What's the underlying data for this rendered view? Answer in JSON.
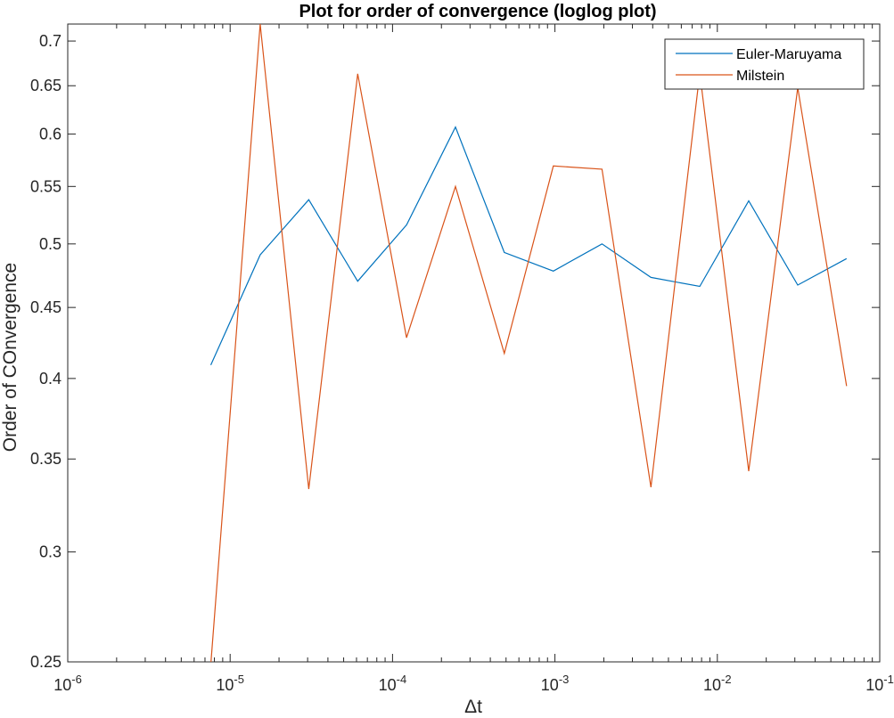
{
  "chart_data": {
    "type": "line",
    "title": "Plot for order of convergence (loglog plot)",
    "xlabel": "Δt",
    "ylabel": "Order of COnvergence",
    "xscale": "log",
    "yscale": "log",
    "xlim": [
      1e-06,
      0.1
    ],
    "ylim": [
      0.25,
      0.72
    ],
    "x_ticks": [
      {
        "value": 1e-06,
        "base": "10",
        "exp": "-6"
      },
      {
        "value": 1e-05,
        "base": "10",
        "exp": "-5"
      },
      {
        "value": 0.0001,
        "base": "10",
        "exp": "-4"
      },
      {
        "value": 0.001,
        "base": "10",
        "exp": "-3"
      },
      {
        "value": 0.01,
        "base": "10",
        "exp": "-2"
      },
      {
        "value": 0.1,
        "base": "10",
        "exp": "-1"
      }
    ],
    "y_ticks": [
      {
        "value": 0.25,
        "label": "0.25"
      },
      {
        "value": 0.3,
        "label": "0.3"
      },
      {
        "value": 0.35,
        "label": "0.35"
      },
      {
        "value": 0.4,
        "label": "0.4"
      },
      {
        "value": 0.45,
        "label": "0.45"
      },
      {
        "value": 0.5,
        "label": "0.5"
      },
      {
        "value": 0.55,
        "label": "0.55"
      },
      {
        "value": 0.6,
        "label": "0.6"
      },
      {
        "value": 0.65,
        "label": "0.65"
      },
      {
        "value": 0.7,
        "label": "0.7"
      }
    ],
    "x": [
      7.6e-06,
      1.53e-05,
      3.05e-05,
      6.1e-05,
      0.000122,
      0.000244,
      0.000488,
      0.000977,
      0.00195,
      0.0039,
      0.0078,
      0.0156,
      0.03125,
      0.0625
    ],
    "series": [
      {
        "name": "Euler-Maruyama",
        "color": "#0072BD",
        "values": [
          0.409,
          0.491,
          0.538,
          0.47,
          0.516,
          0.607,
          0.493,
          0.478,
          0.5,
          0.473,
          0.466,
          0.537,
          0.467,
          0.488
        ]
      },
      {
        "name": "Milstein",
        "color": "#D95319",
        "values": [
          0.249,
          0.72,
          0.333,
          0.663,
          0.428,
          0.55,
          0.417,
          0.569,
          0.566,
          0.334,
          0.664,
          0.343,
          0.648,
          0.395
        ]
      }
    ],
    "legend_position": "top-right",
    "grid": false,
    "box": true
  }
}
